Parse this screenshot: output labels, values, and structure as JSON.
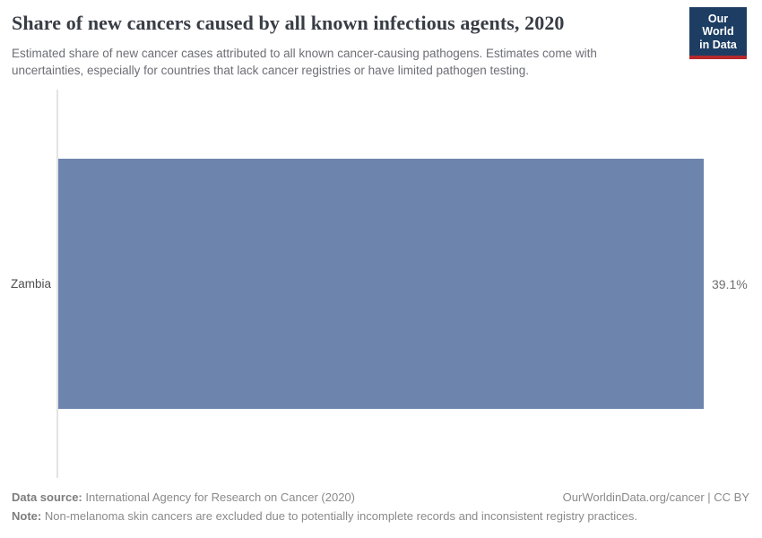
{
  "header": {
    "title": "Share of new cancers caused by all known infectious agents, 2020",
    "subtitle": "Estimated share of new cancer cases attributed to all known cancer-causing pathogens. Estimates come with uncertainties, especially for countries that lack cancer registries or have limited pathogen testing.",
    "logo": {
      "line1": "Our World",
      "line2": "in Data",
      "bg_color": "#1d3d63",
      "accent_color": "#b5292c"
    }
  },
  "chart_data": {
    "type": "bar",
    "orientation": "horizontal",
    "title": "Share of new cancers caused by all known infectious agents, 2020",
    "categories": [
      "Zambia"
    ],
    "values": [
      39.1
    ],
    "value_labels": [
      "39.1%"
    ],
    "unit": "%",
    "xlim": [
      0,
      39.1
    ],
    "bar_color": "#6d85ad",
    "axis_line_color": "#e3e3e3",
    "grid": false,
    "legend": false
  },
  "footer": {
    "data_source_label": "Data source:",
    "data_source": "International Agency for Research on Cancer (2020)",
    "rights": "OurWorldinData.org/cancer | CC BY",
    "note_label": "Note:",
    "note": "Non-melanoma skin cancers are excluded due to potentially incomplete records and inconsistent registry practices."
  }
}
